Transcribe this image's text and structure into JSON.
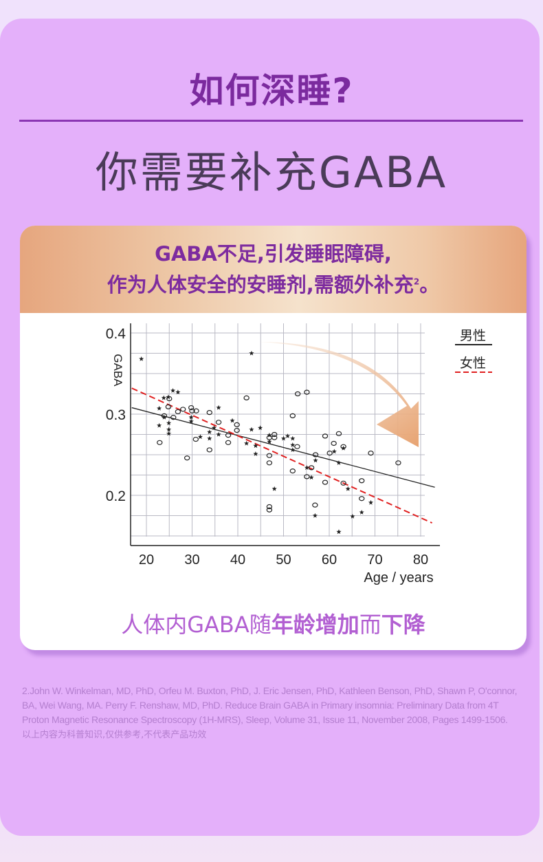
{
  "header": {
    "title": "如何深睡?",
    "subtitle": "你需要补充GABA"
  },
  "card": {
    "headline_1": "GABA不足,引发睡眠障碍,",
    "headline_2": "作为人体安全的安睡剂,需额外补充",
    "headline_2_sup": "2",
    "headline_2_end": "。",
    "caption_parts": [
      "人体内GABA随",
      "年龄增加",
      "而",
      "下降"
    ]
  },
  "chart_data": {
    "type": "scatter",
    "xlabel": "Age / years",
    "ylabel": "GABA",
    "xlim": [
      16.5,
      84
    ],
    "ylim": [
      0.138,
      0.412
    ],
    "xticks": [
      20,
      30,
      40,
      50,
      60,
      70,
      80
    ],
    "yticks": [
      0.2,
      0.3,
      0.4
    ],
    "xtick_labels": [
      "20",
      "30",
      "40",
      "50",
      "60",
      "70",
      "80"
    ],
    "ytick_labels": [
      "0.2",
      "0.3",
      "0.4"
    ],
    "grid": true,
    "legend": {
      "placement": "top-right",
      "entries": [
        {
          "name": "男性",
          "style": "solid",
          "color": "#222222"
        },
        {
          "name": "女性",
          "style": "dashed",
          "color": "#e02020"
        }
      ]
    },
    "series": [
      {
        "marker": "star",
        "points": [
          [
            18.9,
            0.368
          ],
          [
            43,
            0.375
          ],
          [
            23.8,
            0.32
          ],
          [
            24.8,
            0.321
          ],
          [
            25.8,
            0.329
          ],
          [
            26.9,
            0.327
          ],
          [
            22.8,
            0.307
          ],
          [
            22.8,
            0.286
          ],
          [
            23.9,
            0.296
          ],
          [
            24.9,
            0.289
          ],
          [
            24.9,
            0.281
          ],
          [
            24.9,
            0.276
          ],
          [
            29.8,
            0.296
          ],
          [
            29.8,
            0.291
          ],
          [
            31.8,
            0.272
          ],
          [
            33.8,
            0.278
          ],
          [
            33.8,
            0.27
          ],
          [
            34.8,
            0.283
          ],
          [
            35.8,
            0.308
          ],
          [
            35.8,
            0.275
          ],
          [
            38.8,
            0.292
          ],
          [
            41.9,
            0.264
          ],
          [
            43,
            0.281
          ],
          [
            43.9,
            0.261
          ],
          [
            43.9,
            0.251
          ],
          [
            44.9,
            0.283
          ],
          [
            48,
            0.208
          ],
          [
            46.9,
            0.274
          ],
          [
            46.9,
            0.266
          ],
          [
            50,
            0.27
          ],
          [
            50.9,
            0.273
          ],
          [
            52,
            0.27
          ],
          [
            52,
            0.262
          ],
          [
            52,
            0.256
          ],
          [
            55.1,
            0.234
          ],
          [
            56.1,
            0.222
          ],
          [
            57,
            0.243
          ],
          [
            56.9,
            0.175
          ],
          [
            61.1,
            0.254
          ],
          [
            62.1,
            0.24
          ],
          [
            63.1,
            0.258
          ],
          [
            62.1,
            0.155
          ],
          [
            64.1,
            0.208
          ],
          [
            65.1,
            0.174
          ],
          [
            67.1,
            0.179
          ],
          [
            69.1,
            0.191
          ]
        ]
      },
      {
        "marker": "circle",
        "points": [
          [
            22.9,
            0.265
          ],
          [
            25,
            0.319
          ],
          [
            24.8,
            0.309
          ],
          [
            23.9,
            0.298
          ],
          [
            25.9,
            0.296
          ],
          [
            26.9,
            0.303
          ],
          [
            28,
            0.306
          ],
          [
            28.9,
            0.246
          ],
          [
            29.8,
            0.308
          ],
          [
            30,
            0.304
          ],
          [
            30.9,
            0.304
          ],
          [
            30.8,
            0.269
          ],
          [
            33.8,
            0.302
          ],
          [
            33.8,
            0.256
          ],
          [
            35.8,
            0.29
          ],
          [
            37.9,
            0.274
          ],
          [
            37.9,
            0.265
          ],
          [
            39.8,
            0.287
          ],
          [
            39.8,
            0.28
          ],
          [
            41.9,
            0.32
          ],
          [
            46.9,
            0.249
          ],
          [
            46.9,
            0.24
          ],
          [
            46.9,
            0.186
          ],
          [
            46.9,
            0.182
          ],
          [
            46.9,
            0.271
          ],
          [
            48,
            0.275
          ],
          [
            48,
            0.271
          ],
          [
            52,
            0.298
          ],
          [
            52,
            0.23
          ],
          [
            53.1,
            0.325
          ],
          [
            55.1,
            0.327
          ],
          [
            53,
            0.26
          ],
          [
            55.1,
            0.223
          ],
          [
            56.1,
            0.234
          ],
          [
            57,
            0.25
          ],
          [
            56.9,
            0.188
          ],
          [
            59.1,
            0.273
          ],
          [
            59.1,
            0.216
          ],
          [
            60.1,
            0.252
          ],
          [
            61,
            0.264
          ],
          [
            62.1,
            0.276
          ],
          [
            63.1,
            0.26
          ],
          [
            63.1,
            0.215
          ],
          [
            67.1,
            0.218
          ],
          [
            67.1,
            0.196
          ],
          [
            69.1,
            0.252
          ],
          [
            75.1,
            0.24
          ]
        ]
      }
    ],
    "trend_lines": [
      {
        "legend": "男性",
        "from": [
          16.8,
          0.308
        ],
        "to": [
          83.1,
          0.21
        ],
        "color": "#222222",
        "style": "solid"
      },
      {
        "legend": "女性",
        "from": [
          16.8,
          0.332
        ],
        "to": [
          82.5,
          0.166
        ],
        "color": "#e02020",
        "style": "dashed"
      }
    ],
    "annotation": "downward-arrow",
    "arrow_color": "#e9a878"
  },
  "footer": {
    "citation": "2.John W. Winkelman, MD, PhD, Orfeu M. Buxton, PhD, J. Eric Jensen, PhD, Kathleen Benson, PhD, Shawn P, O'connor, BA, Wei Wang, MA. Perry F. Renshaw, MD, PhD. Reduce Brain GABA in Primary insomnia: Preliminary Data from 4T Proton Magnetic Resonance Spectroscopy (1H-MRS), Sleep, Volume 31, Issue 11, November 2008, Pages 1499-1506.",
    "disclaimer": "以上内容为科普知识,仅供参考,不代表产品功效"
  },
  "colors": {
    "panel": "#e4b0fa",
    "title": "#7b2a9e",
    "caption": "#b25fd2"
  }
}
